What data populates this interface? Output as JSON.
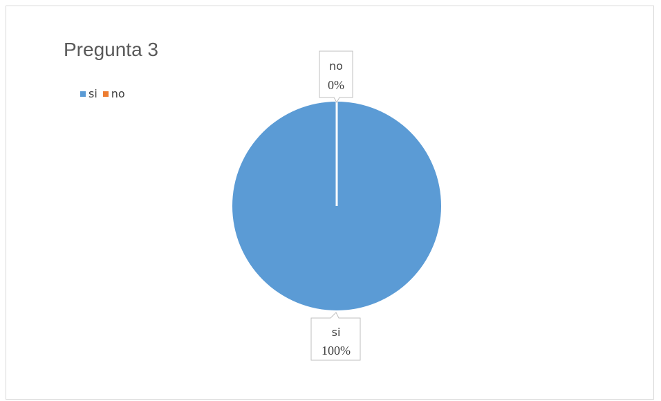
{
  "chart_data": {
    "type": "pie",
    "title": "Pregunta 3",
    "categories": [
      "si",
      "no"
    ],
    "values": [
      100,
      0
    ],
    "percent_labels": [
      "100%",
      "0%"
    ],
    "colors": [
      "#5b9bd5",
      "#ed7d31"
    ],
    "legend_position": "top-left",
    "data_labels": [
      {
        "category": "si",
        "percent": "100%"
      },
      {
        "category": "no",
        "percent": "0%"
      }
    ]
  }
}
